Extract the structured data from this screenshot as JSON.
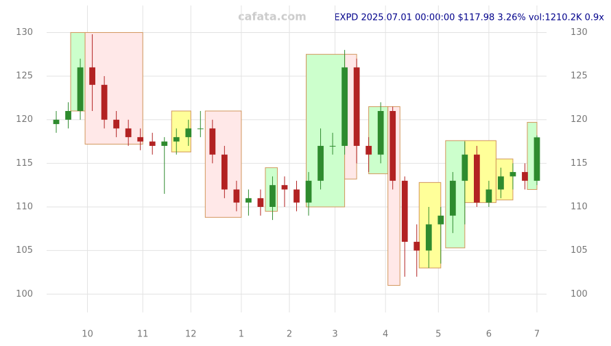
{
  "chart_data": {
    "type": "candlestick",
    "title": "EXPD 2025.07.01 00:00:00 $117.98 3.26% vol:1210.2K 0.9x",
    "watermark": "cafata.com",
    "x": [
      0,
      5,
      10,
      15,
      20,
      25,
      30,
      35,
      40,
      45,
      50,
      55,
      60,
      65,
      70,
      75,
      80,
      85,
      90,
      95,
      100,
      105,
      110,
      115,
      120,
      125,
      130,
      135,
      140,
      145,
      150,
      155,
      160,
      165,
      170,
      175,
      180,
      185,
      190,
      195,
      200
    ],
    "open": [
      119.5,
      120,
      121,
      126,
      124,
      120,
      119,
      118,
      117.5,
      117,
      117.5,
      118,
      119,
      119,
      116,
      112,
      110.5,
      111,
      110,
      112.5,
      112,
      110.5,
      113,
      117,
      117,
      126,
      117,
      116,
      121,
      113,
      106,
      105,
      108,
      109,
      113,
      116,
      110.5,
      112,
      113.5,
      114,
      113
    ],
    "high": [
      121,
      122,
      127,
      129.8,
      125,
      121,
      120,
      119,
      118.5,
      118,
      119,
      120,
      121,
      120,
      117,
      113,
      112,
      112,
      113.5,
      113.5,
      113,
      114,
      119,
      118.5,
      128,
      127,
      118,
      122,
      121.5,
      113.5,
      108,
      110,
      110,
      114,
      117.5,
      117,
      113,
      114.5,
      115,
      115,
      118.2
    ],
    "low": [
      118.5,
      119,
      120,
      121,
      119,
      118,
      117,
      116.5,
      116,
      111.5,
      116,
      117,
      118,
      115,
      111,
      109.5,
      109,
      109,
      108.5,
      110,
      109.5,
      109,
      112,
      116,
      116,
      115,
      114,
      115,
      112,
      102,
      102,
      103,
      103.5,
      107,
      108,
      110,
      110,
      111,
      112,
      112,
      112.5
    ],
    "close": [
      120,
      121,
      126,
      124,
      120,
      119,
      118,
      117.5,
      117,
      117.5,
      118,
      119,
      119,
      116,
      112,
      110.5,
      111,
      110,
      112.5,
      112,
      110.5,
      113,
      117,
      117,
      126,
      117,
      116,
      121,
      113,
      106,
      105,
      108,
      109,
      113,
      116,
      110.5,
      112,
      113.5,
      114,
      113,
      117.98
    ],
    "up_color": "#2e8b2e",
    "down_color": "#b22222",
    "zones": [
      {
        "x": [
          6,
          12
        ],
        "y": [
          121,
          130
        ],
        "color": "#ccffcc"
      },
      {
        "x": [
          12,
          36
        ],
        "y": [
          117.2,
          130
        ],
        "color": "#ffe8e8"
      },
      {
        "x": [
          48,
          56
        ],
        "y": [
          116.3,
          121
        ],
        "color": "#ffff99"
      },
      {
        "x": [
          62,
          77
        ],
        "y": [
          108.8,
          121
        ],
        "color": "#ffe8e8"
      },
      {
        "x": [
          87,
          92
        ],
        "y": [
          109.5,
          114.5
        ],
        "color": "#ccffcc"
      },
      {
        "x": [
          104,
          120
        ],
        "y": [
          110,
          127.5
        ],
        "color": "#ccffcc"
      },
      {
        "x": [
          120,
          125
        ],
        "y": [
          113.2,
          127.5
        ],
        "color": "#ffe8e8"
      },
      {
        "x": [
          130,
          138
        ],
        "y": [
          113.8,
          121.5
        ],
        "color": "#ccffcc"
      },
      {
        "x": [
          138,
          143
        ],
        "y": [
          101,
          121.5
        ],
        "color": "#ffe8e8"
      },
      {
        "x": [
          151,
          160
        ],
        "y": [
          103,
          112.8
        ],
        "color": "#ffff99"
      },
      {
        "x": [
          162,
          170
        ],
        "y": [
          105.3,
          117.6
        ],
        "color": "#ccffcc"
      },
      {
        "x": [
          170,
          183
        ],
        "y": [
          110.5,
          117.6
        ],
        "color": "#ffff99"
      },
      {
        "x": [
          183,
          190
        ],
        "y": [
          110.8,
          115.5
        ],
        "color": "#ffff99"
      },
      {
        "x": [
          196,
          200
        ],
        "y": [
          112,
          119.7
        ],
        "color": "#ccffcc"
      }
    ],
    "xlim": [
      -4,
      204
    ],
    "xticks": [
      {
        "value": 13,
        "label": "10"
      },
      {
        "value": 36,
        "label": "11"
      },
      {
        "value": 56,
        "label": "12"
      },
      {
        "value": 77,
        "label": "1"
      },
      {
        "value": 97,
        "label": "2"
      },
      {
        "value": 116,
        "label": "3"
      },
      {
        "value": 137,
        "label": "4"
      },
      {
        "value": 159,
        "label": "5"
      },
      {
        "value": 180,
        "label": "6"
      },
      {
        "value": 200,
        "label": "7"
      }
    ],
    "ylim": [
      97.9,
      133.1
    ],
    "yticks": [
      100,
      105,
      110,
      115,
      120,
      125,
      130
    ],
    "grid": true
  }
}
